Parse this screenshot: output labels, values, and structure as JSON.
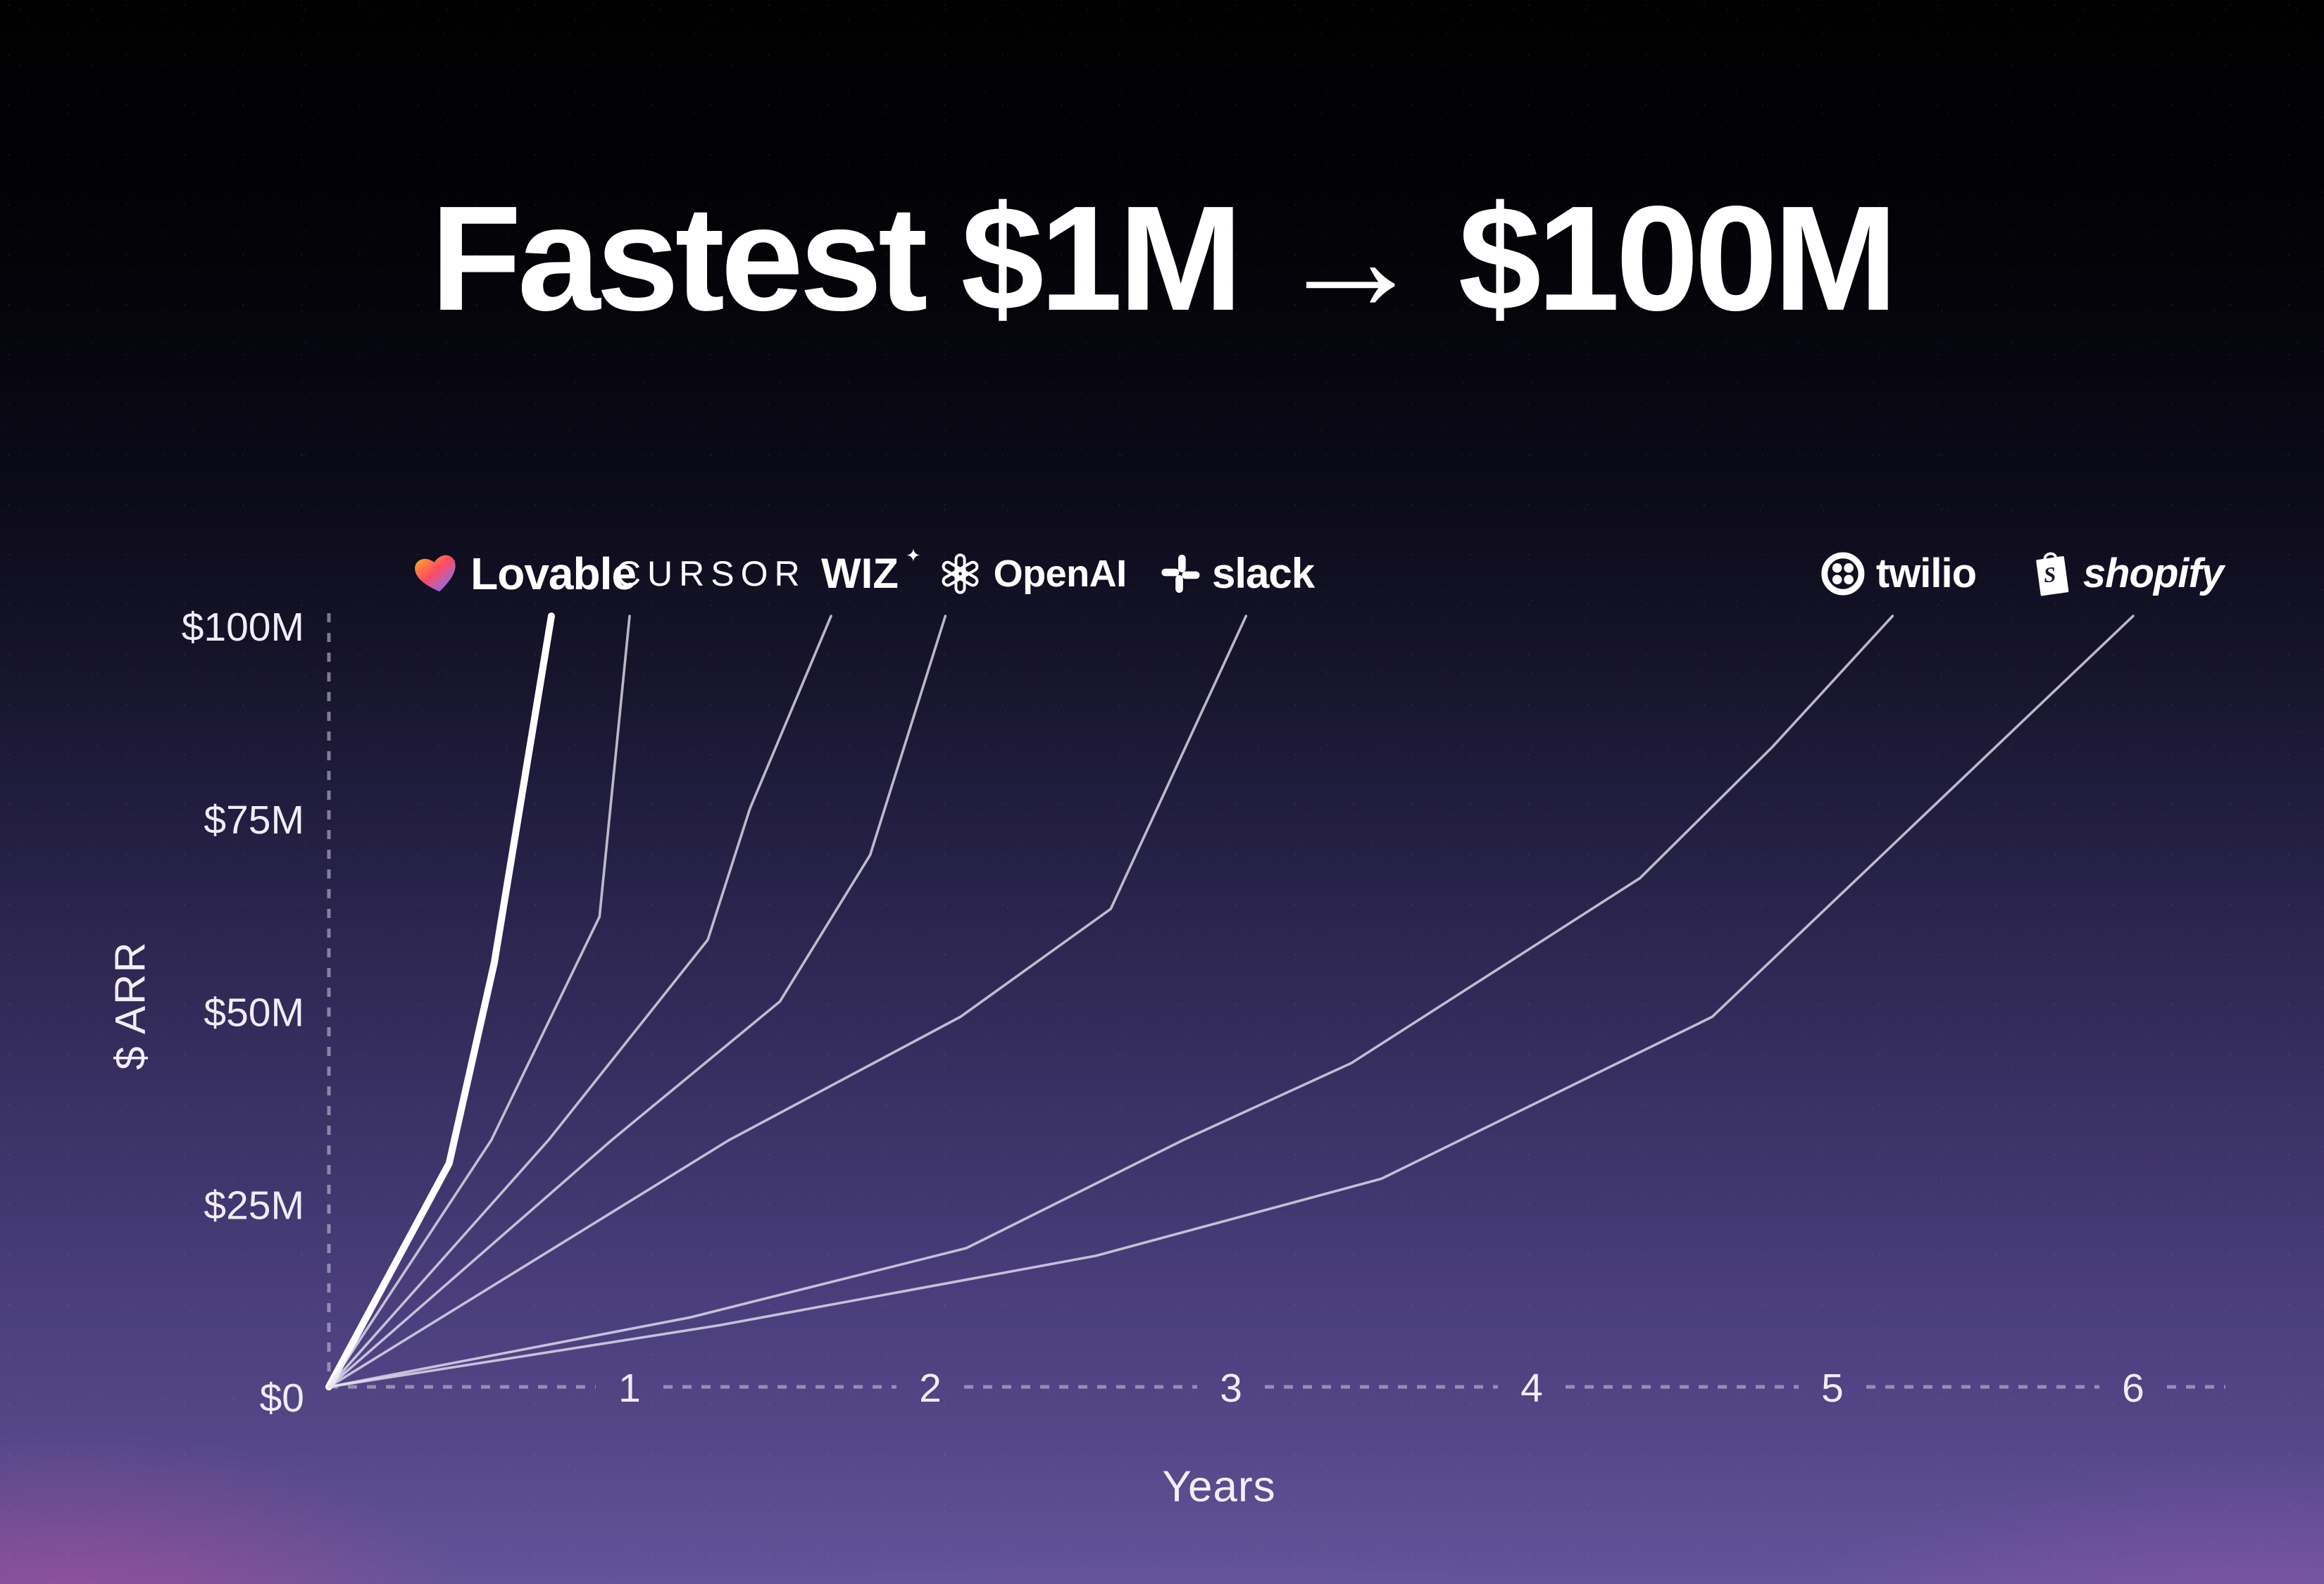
{
  "title": {
    "text": "Fastest $1M → $100M"
  },
  "chart_data": {
    "type": "line",
    "title": "Fastest $1M → $100M",
    "xlabel": "Years",
    "ylabel": "$ ARR",
    "xlim": [
      0,
      6.3
    ],
    "ylim": [
      0,
      100
    ],
    "grid": false,
    "legend_position": "logos-above-line-endpoints",
    "x_ticks": [
      {
        "v": 1,
        "label": "1"
      },
      {
        "v": 2,
        "label": "2"
      },
      {
        "v": 3,
        "label": "3"
      },
      {
        "v": 4,
        "label": "4"
      },
      {
        "v": 5,
        "label": "5"
      },
      {
        "v": 6,
        "label": "6"
      }
    ],
    "y_ticks": [
      {
        "v": 0,
        "label": "$0"
      },
      {
        "v": 25,
        "label": "$25M"
      },
      {
        "v": 50,
        "label": "$50M"
      },
      {
        "v": 75,
        "label": "$75M"
      },
      {
        "v": 100,
        "label": "$100M"
      }
    ],
    "series": [
      {
        "name": "Lovable",
        "label": "Lovable",
        "bold": true,
        "logo_x": 0.65,
        "points": [
          [
            0,
            0
          ],
          [
            0.4,
            29
          ],
          [
            0.55,
            55
          ],
          [
            0.74,
            100
          ]
        ]
      },
      {
        "name": "Cursor",
        "label": "CURSOR",
        "bold": false,
        "logo_x": 1.27,
        "points": [
          [
            0,
            0
          ],
          [
            0.54,
            32
          ],
          [
            0.9,
            61
          ],
          [
            1.0,
            100
          ]
        ]
      },
      {
        "name": "Wiz",
        "label": "WIZ",
        "bold": false,
        "logo_x": 1.81,
        "points": [
          [
            0,
            0
          ],
          [
            0.73,
            32
          ],
          [
            1.26,
            58
          ],
          [
            1.4,
            75
          ],
          [
            1.67,
            100
          ]
        ]
      },
      {
        "name": "OpenAI",
        "label": "OpenAI",
        "bold": false,
        "logo_x": 2.34,
        "points": [
          [
            0,
            0
          ],
          [
            0.94,
            32
          ],
          [
            1.5,
            50
          ],
          [
            1.8,
            69
          ],
          [
            2.05,
            100
          ]
        ]
      },
      {
        "name": "Slack",
        "label": "slack",
        "bold": false,
        "logo_x": 3.02,
        "points": [
          [
            0,
            0
          ],
          [
            1.33,
            32
          ],
          [
            2.1,
            48
          ],
          [
            2.6,
            62
          ],
          [
            3.05,
            100
          ]
        ]
      },
      {
        "name": "Twilio",
        "label": "twilio",
        "bold": false,
        "logo_x": 5.22,
        "points": [
          [
            0,
            0
          ],
          [
            1.2,
            9
          ],
          [
            2.12,
            18
          ],
          [
            2.84,
            32
          ],
          [
            3.4,
            42
          ],
          [
            4.36,
            66
          ],
          [
            4.8,
            83
          ],
          [
            5.2,
            100
          ]
        ]
      },
      {
        "name": "Shopify",
        "label": "shopify",
        "bold": false,
        "logo_x": 5.98,
        "points": [
          [
            0,
            0
          ],
          [
            1.3,
            8
          ],
          [
            2.55,
            17
          ],
          [
            3.5,
            27
          ],
          [
            4.6,
            48
          ],
          [
            5.3,
            74
          ],
          [
            6.0,
            100
          ]
        ]
      }
    ],
    "colors": {
      "highlight_line": "#ffffff",
      "line": "#e8e5f2",
      "axis_dash": "#c3c0d2",
      "text": "#f4f3f8"
    }
  }
}
